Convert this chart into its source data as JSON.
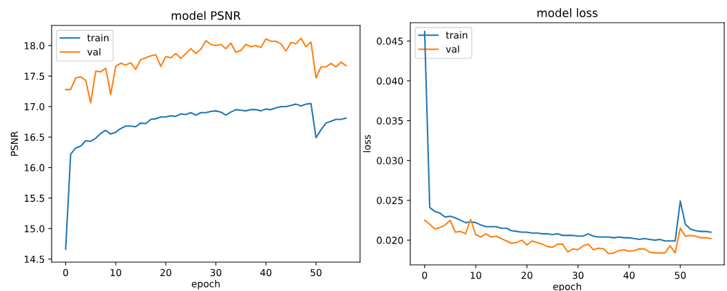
{
  "chart_data": [
    {
      "type": "line",
      "title": "model PSNR",
      "xlabel": "epoch",
      "ylabel": "PSNR",
      "x": [
        0,
        1,
        2,
        3,
        4,
        5,
        6,
        7,
        8,
        9,
        10,
        11,
        12,
        13,
        14,
        15,
        16,
        17,
        18,
        19,
        20,
        21,
        22,
        23,
        24,
        25,
        26,
        27,
        28,
        29,
        30,
        31,
        32,
        33,
        34,
        35,
        36,
        37,
        38,
        39,
        40,
        41,
        42,
        43,
        44,
        45,
        46,
        47,
        48,
        49,
        50,
        51,
        52,
        53,
        54,
        55,
        56
      ],
      "xlim": [
        -2.8,
        58.8
      ],
      "xticks": [
        0,
        10,
        20,
        30,
        40,
        50
      ],
      "ylim": [
        14.45,
        18.33
      ],
      "yticks": [
        14.5,
        {
          "value": 15,
          "label": "15.0"
        },
        15.5,
        {
          "value": 16,
          "label": "16.0"
        },
        16.5,
        {
          "value": 17,
          "label": "17.0"
        },
        17.5,
        {
          "value": 18,
          "label": "18.0"
        }
      ],
      "grid": false,
      "legend": "top left",
      "series": [
        {
          "name": "train",
          "color": "#1f77b4",
          "values": [
            14.66,
            16.22,
            16.32,
            16.35,
            16.44,
            16.43,
            16.48,
            16.56,
            16.61,
            16.55,
            16.58,
            16.64,
            16.68,
            16.68,
            16.67,
            16.73,
            16.72,
            16.79,
            16.8,
            16.83,
            16.83,
            16.85,
            16.84,
            16.88,
            16.87,
            16.9,
            16.86,
            16.9,
            16.9,
            16.92,
            16.93,
            16.91,
            16.86,
            16.91,
            16.95,
            16.94,
            16.93,
            16.95,
            16.95,
            16.93,
            16.96,
            16.95,
            16.98,
            17.0,
            17.0,
            17.02,
            17.04,
            17.01,
            17.04,
            17.05,
            16.49,
            16.62,
            16.73,
            16.76,
            16.79,
            16.79,
            16.81
          ]
        },
        {
          "name": "val",
          "color": "#ff7f0e",
          "values": [
            17.28,
            17.28,
            17.47,
            17.49,
            17.43,
            17.06,
            17.58,
            17.57,
            17.63,
            17.2,
            17.66,
            17.71,
            17.68,
            17.72,
            17.61,
            17.77,
            17.8,
            17.83,
            17.85,
            17.66,
            17.82,
            17.8,
            17.87,
            17.79,
            17.87,
            17.95,
            17.87,
            17.94,
            18.08,
            18.02,
            18.0,
            18.02,
            17.95,
            18.04,
            17.89,
            17.92,
            18.02,
            17.98,
            18.0,
            17.97,
            18.11,
            18.07,
            18.07,
            18.03,
            17.91,
            18.05,
            18.03,
            18.12,
            17.98,
            18.06,
            17.47,
            17.65,
            17.65,
            17.71,
            17.65,
            17.73,
            17.67
          ]
        }
      ]
    },
    {
      "type": "line",
      "title": "model loss",
      "xlabel": "epoch",
      "ylabel": "loss",
      "x": [
        0,
        1,
        2,
        3,
        4,
        5,
        6,
        7,
        8,
        9,
        10,
        11,
        12,
        13,
        14,
        15,
        16,
        17,
        18,
        19,
        20,
        21,
        22,
        23,
        24,
        25,
        26,
        27,
        28,
        29,
        30,
        31,
        32,
        33,
        34,
        35,
        36,
        37,
        38,
        39,
        40,
        41,
        42,
        43,
        44,
        45,
        46,
        47,
        48,
        49,
        50,
        51,
        52,
        53,
        54,
        55,
        56
      ],
      "xlim": [
        -2.8,
        58.6
      ],
      "xticks": [
        0,
        10,
        20,
        30,
        40,
        50
      ],
      "ylim": [
        0.0169,
        0.0473
      ],
      "yticks": [
        {
          "value": 0.02,
          "label": "0.020"
        },
        {
          "value": 0.025,
          "label": "0.025"
        },
        {
          "value": 0.03,
          "label": "0.030"
        },
        {
          "value": 0.035,
          "label": "0.035"
        },
        {
          "value": 0.04,
          "label": "0.040"
        },
        {
          "value": 0.045,
          "label": "0.045"
        }
      ],
      "grid": false,
      "legend": "top left",
      "series": [
        {
          "name": "train",
          "color": "#1f77b4",
          "values": [
            0.0462,
            0.0241,
            0.0236,
            0.0234,
            0.0229,
            0.023,
            0.0228,
            0.0225,
            0.0222,
            0.0223,
            0.0222,
            0.0219,
            0.0217,
            0.0217,
            0.0217,
            0.0215,
            0.0215,
            0.0212,
            0.0211,
            0.021,
            0.021,
            0.0209,
            0.0209,
            0.0208,
            0.0208,
            0.0207,
            0.0208,
            0.0206,
            0.0206,
            0.0206,
            0.0205,
            0.0205,
            0.0208,
            0.0205,
            0.0204,
            0.0204,
            0.0204,
            0.0203,
            0.0204,
            0.0203,
            0.0203,
            0.0202,
            0.0201,
            0.0202,
            0.0201,
            0.02,
            0.0201,
            0.0199,
            0.0199,
            0.0199,
            0.0249,
            0.022,
            0.0214,
            0.0212,
            0.0211,
            0.0211,
            0.021
          ]
        },
        {
          "name": "val",
          "color": "#ff7f0e",
          "values": [
            0.0225,
            0.022,
            0.0214,
            0.0216,
            0.0219,
            0.0225,
            0.021,
            0.0211,
            0.0208,
            0.0226,
            0.0207,
            0.0204,
            0.0208,
            0.0204,
            0.0205,
            0.0202,
            0.0199,
            0.0196,
            0.0197,
            0.02,
            0.0194,
            0.0199,
            0.0197,
            0.0195,
            0.0192,
            0.0191,
            0.0195,
            0.0195,
            0.0185,
            0.0189,
            0.0188,
            0.0193,
            0.0195,
            0.0188,
            0.019,
            0.0189,
            0.0183,
            0.0184,
            0.0187,
            0.0188,
            0.0186,
            0.0187,
            0.0189,
            0.0189,
            0.0185,
            0.0184,
            0.0184,
            0.0184,
            0.0193,
            0.0184,
            0.0215,
            0.0205,
            0.0206,
            0.0205,
            0.0203,
            0.0203,
            0.0202
          ]
        }
      ]
    }
  ]
}
